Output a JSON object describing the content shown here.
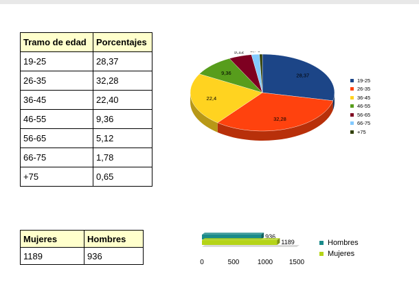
{
  "age_table": {
    "headers": [
      "Tramo de edad",
      "Porcentajes"
    ],
    "rows": [
      [
        "19-25",
        "28,37"
      ],
      [
        "26-35",
        "32,28"
      ],
      [
        "36-45",
        "22,40"
      ],
      [
        "46-55",
        "9,36"
      ],
      [
        "56-65",
        "5,12"
      ],
      [
        "66-75",
        "1,78"
      ],
      [
        "+75",
        "0,65"
      ]
    ]
  },
  "gender_table": {
    "headers": [
      "Mujeres",
      "Hombres"
    ],
    "values": [
      "1189",
      "936"
    ]
  },
  "chart_data": [
    {
      "type": "pie",
      "categories": [
        "19-25",
        "26-35",
        "36-45",
        "46-55",
        "56-65",
        "66-75",
        "+75"
      ],
      "values": [
        28.37,
        32.28,
        22.4,
        9.36,
        5.12,
        1.78,
        0.65
      ],
      "data_labels": [
        "28,37",
        "32,28",
        "22,4",
        "9,36",
        "5,12",
        "1,78",
        "0,65"
      ],
      "colors": [
        "#1c4587",
        "#ff420e",
        "#ffd320",
        "#579d1c",
        "#7e0021",
        "#83caff",
        "#314004"
      ],
      "legend": "right",
      "style": "3d"
    },
    {
      "type": "bar",
      "orientation": "horizontal",
      "series": [
        {
          "name": "Hombres",
          "value": 936,
          "label": "936",
          "color": "#1a8a8a"
        },
        {
          "name": "Mujeres",
          "value": 1189,
          "label": "1189",
          "color": "#b5d418"
        }
      ],
      "x_ticks": [
        "0",
        "500",
        "1000",
        "1500"
      ],
      "xlim": [
        0,
        1500
      ],
      "legend": "right"
    }
  ]
}
